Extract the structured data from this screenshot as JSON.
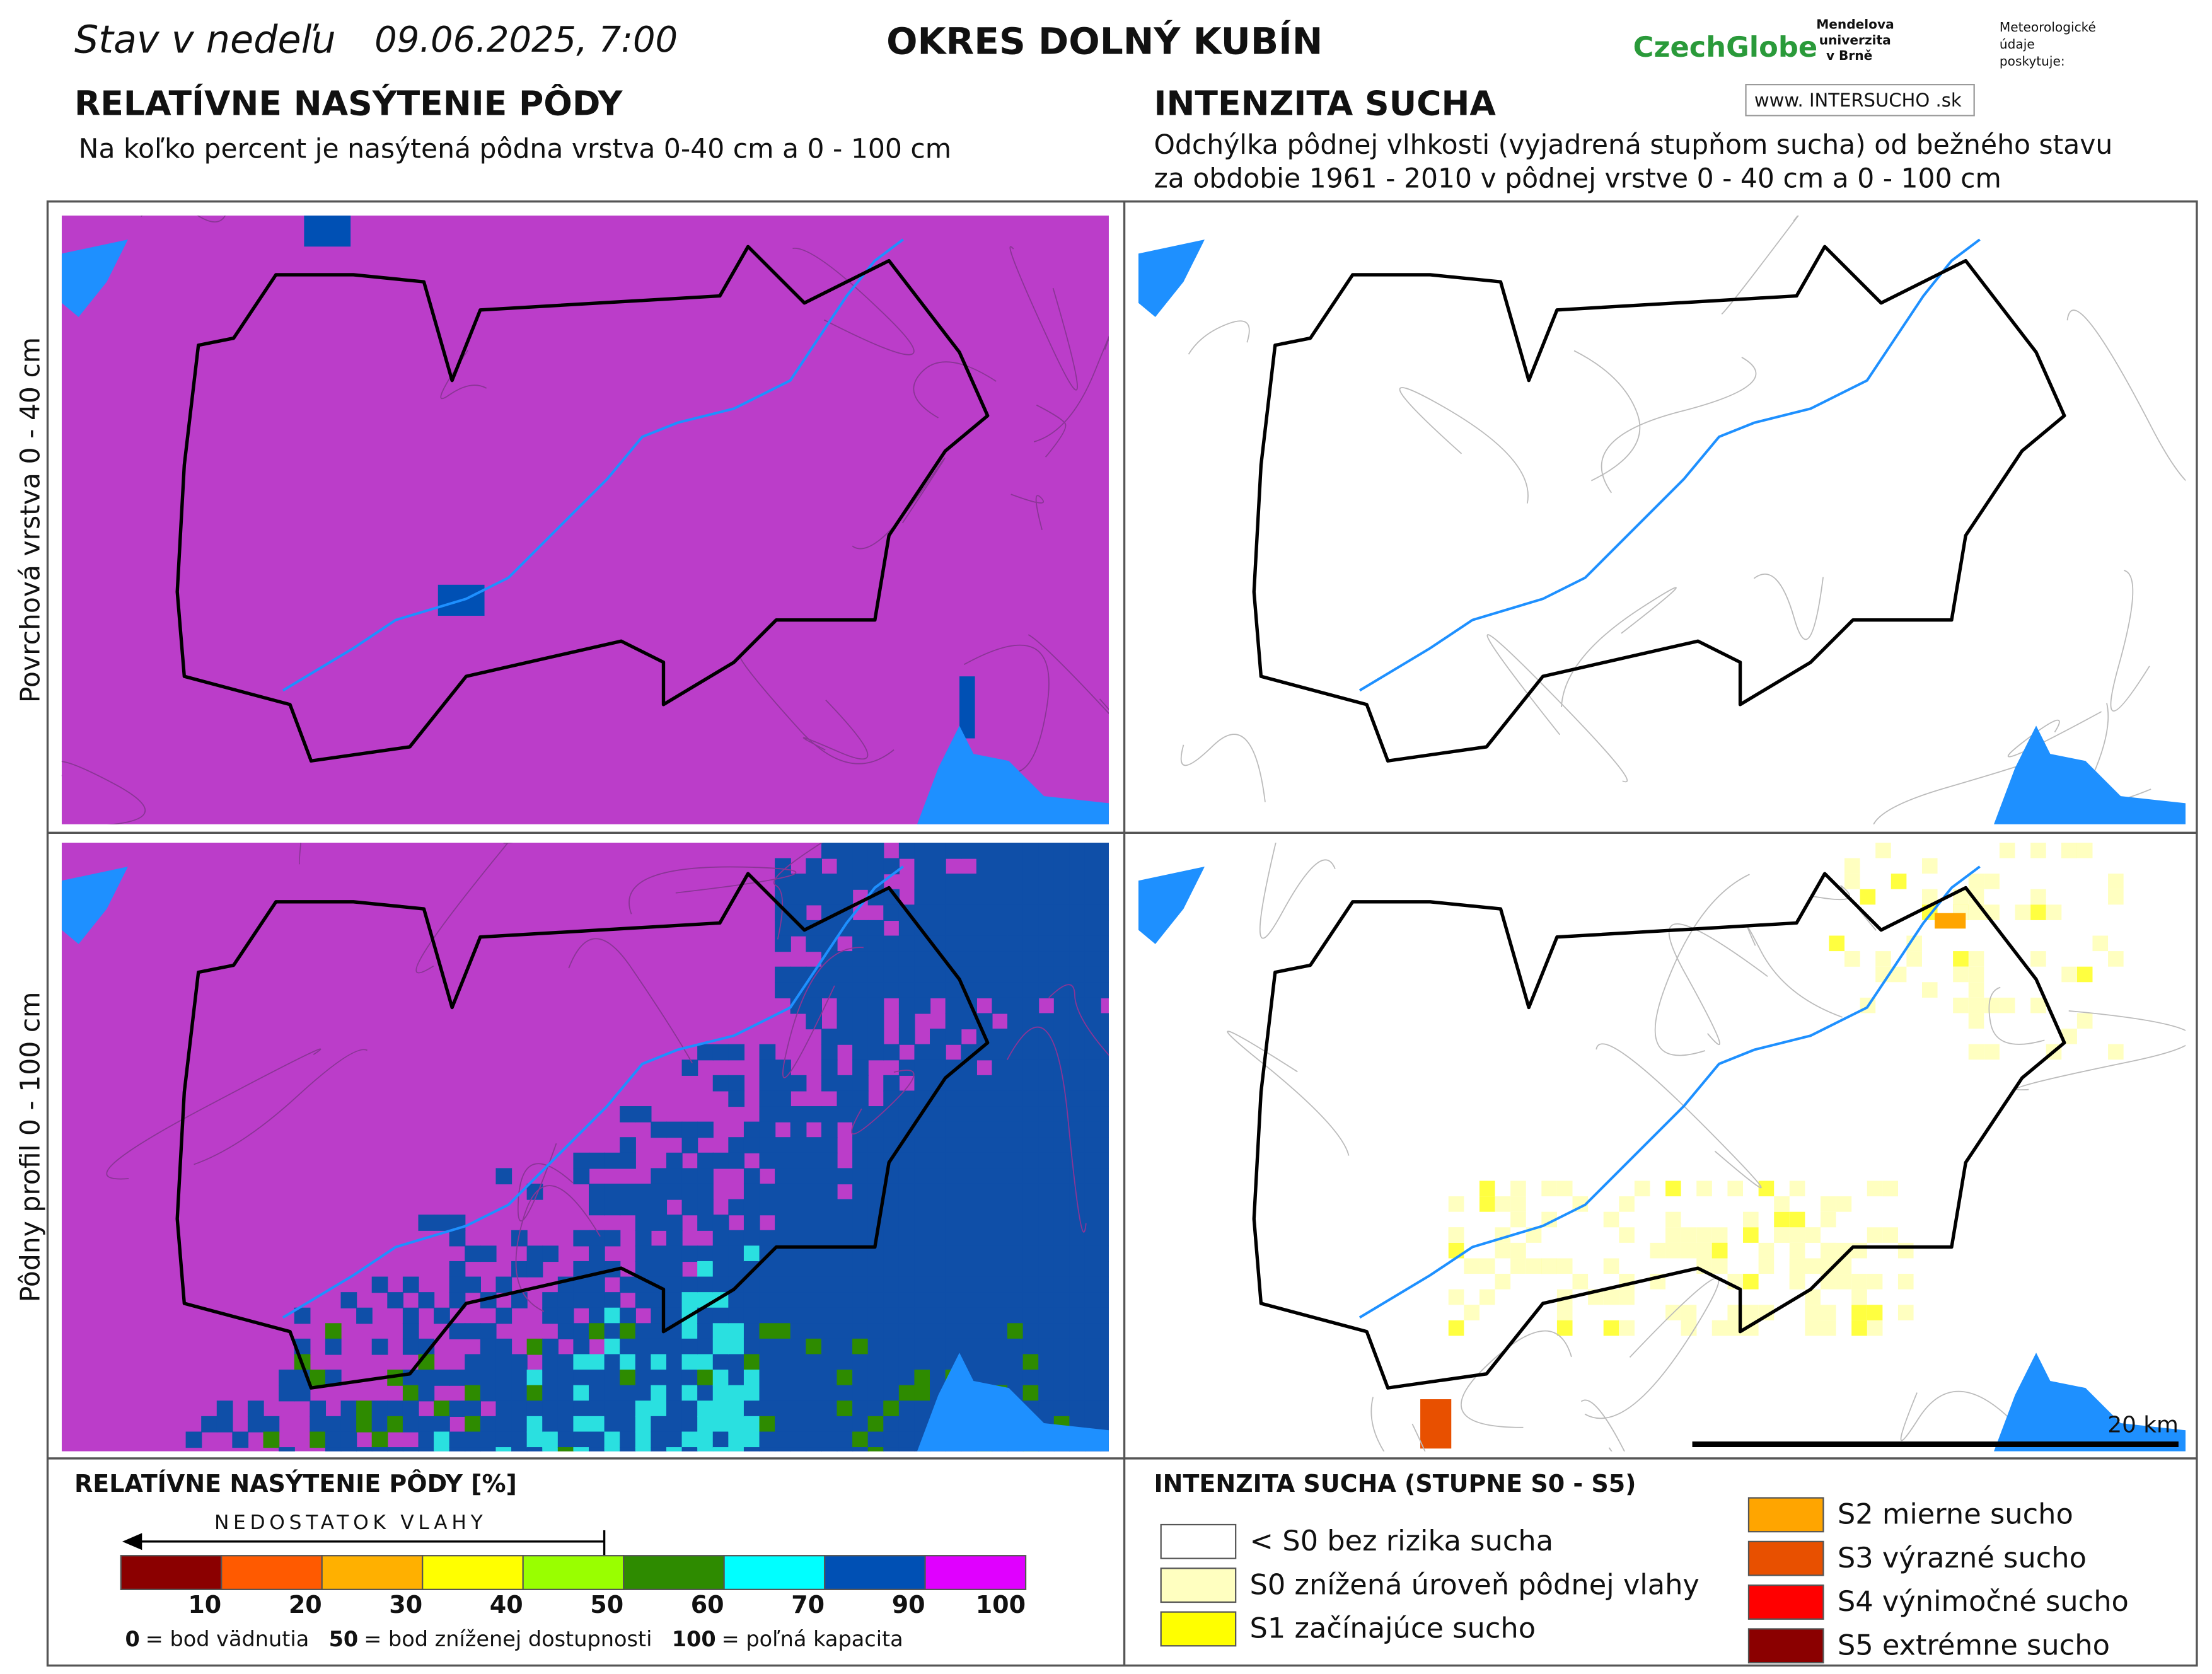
{
  "header": {
    "date_prefix": "Stav v nedeľu",
    "date": "09.06.2025, 7:00",
    "region": "OKRES  DOLNÝ KUBÍN",
    "logos": {
      "czechglobe": "CzechGlobe",
      "mendel": [
        "Mendelova",
        "univerzita",
        "v Brně"
      ],
      "meteo": [
        "Meteorologické",
        "údaje",
        "poskytuje:"
      ],
      "intersucho": "www. INTERSUCHO .sk"
    }
  },
  "left": {
    "title": "RELATÍVNE NASÝTENIE PÔDY",
    "subtitle": "Na koľko percent je nasýtená pôdna vrstva 0-40 cm a 0 - 100 cm"
  },
  "right": {
    "title": "INTENZITA SUCHA",
    "subtitle_lines": [
      "Odchýlka pôdnej vlhkosti (vyjadrená stupňom sucha) od bežného stavu",
      "za obdobie 1961 - 2010 v pôdnej vrstve 0 - 40 cm a 0 - 100 cm"
    ]
  },
  "row_labels": [
    "Povrchová vrstva 0 - 40 cm",
    "Pôdny profil 0 - 100 cm"
  ],
  "scale_bar": "20 km",
  "legend_left": {
    "title": "RELATÍVNE NASÝTENIE PÔDY [%]",
    "arrow": "NEDOSTATOK VLAHY",
    "bins": [
      {
        "color": "#8b0000",
        "label": "10"
      },
      {
        "color": "#ff5a00",
        "label": "20"
      },
      {
        "color": "#ffb000",
        "label": "30"
      },
      {
        "color": "#ffff00",
        "label": "40"
      },
      {
        "color": "#99ff00",
        "label": "50"
      },
      {
        "color": "#2e8b00",
        "label": "60"
      },
      {
        "color": "#00ffff",
        "label": "70"
      },
      {
        "color": "#0050b4",
        "label": "90"
      },
      {
        "color": "#e000ff",
        "label": "100"
      }
    ],
    "notes": [
      {
        "bold": "0",
        "text": "= bod vädnutia"
      },
      {
        "bold": "50",
        "text": "= bod zníženej dostupnosti"
      },
      {
        "bold": "100",
        "text": "= poľná kapacita"
      }
    ]
  },
  "legend_right": {
    "title": "INTENZITA SUCHA (STUPNE S0 - S5)",
    "items": [
      {
        "color": "#ffffff",
        "label": "< S0 bez rizika sucha"
      },
      {
        "color": "#ffffc0",
        "label": "S0 znížená úroveň pôdnej vlahy"
      },
      {
        "color": "#ffff00",
        "label": "S1 začínajúce sucho"
      },
      {
        "color": "#ffa500",
        "label": "S2 mierne sucho"
      },
      {
        "color": "#e85000",
        "label": "S3 výrazné sucho"
      },
      {
        "color": "#ff0000",
        "label": "S4 výnimočné sucho"
      },
      {
        "color": "#8b0000",
        "label": "S5 extrémne sucho"
      }
    ]
  }
}
